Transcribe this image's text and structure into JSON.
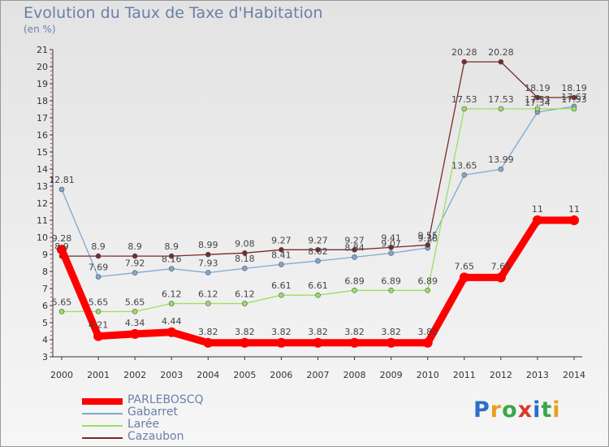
{
  "chart_data": {
    "type": "line",
    "title": "Evolution du Taux de Taxe d'Habitation",
    "subtitle": "(en %)",
    "x": [
      "2000",
      "2001",
      "2002",
      "2003",
      "2004",
      "2005",
      "2006",
      "2007",
      "2008",
      "2009",
      "2010",
      "2011",
      "2012",
      "2013",
      "2014"
    ],
    "ylim": [
      3,
      21
    ],
    "yticks": [
      3,
      4,
      5,
      6,
      7,
      8,
      9,
      10,
      11,
      12,
      13,
      14,
      15,
      16,
      17,
      18,
      19,
      20,
      21
    ],
    "grid": false,
    "legend_position": "bottom-left",
    "series": [
      {
        "name": "PARLEBOSCQ",
        "color": "#ff0000",
        "values": [
          9.28,
          4.21,
          4.34,
          4.44,
          3.82,
          3.82,
          3.82,
          3.82,
          3.82,
          3.82,
          3.82,
          7.65,
          7.65,
          11,
          11
        ],
        "labels": [
          "9.28",
          "4.21",
          "4.34",
          "4.44",
          "3.82",
          "3.82",
          "3.82",
          "3.82",
          "3.82",
          "3.82",
          "3.82",
          "7.65",
          "7.65",
          "11",
          "11"
        ]
      },
      {
        "name": "Gabarret",
        "color": "#7fa8d0",
        "values": [
          12.81,
          7.69,
          7.92,
          8.16,
          7.93,
          8.18,
          8.41,
          8.62,
          8.84,
          9.07,
          9.38,
          13.65,
          13.99,
          17.34,
          17.67
        ],
        "labels": [
          "12.81",
          "7.69",
          "7.92",
          "8.16",
          "7.93",
          "8.18",
          "8.41",
          "8.62",
          "8.84",
          "9.07",
          "9.38",
          "13.65",
          "13.99",
          "17.34",
          "17.67"
        ]
      },
      {
        "name": "Larée",
        "color": "#99e060",
        "values": [
          5.65,
          5.65,
          5.65,
          6.12,
          6.12,
          6.12,
          6.61,
          6.61,
          6.89,
          6.89,
          6.89,
          17.53,
          17.53,
          17.53,
          17.53
        ],
        "labels": [
          "5.65",
          "5.65",
          "5.65",
          "6.12",
          "6.12",
          "6.12",
          "6.61",
          "6.61",
          "6.89",
          "6.89",
          "6.89",
          "17.53",
          "17.53",
          "17.53",
          "17.53"
        ]
      },
      {
        "name": "Cazaubon",
        "color": "#7a2a2a",
        "values": [
          8.9,
          8.9,
          8.9,
          8.9,
          8.99,
          9.08,
          9.27,
          9.27,
          9.27,
          9.41,
          9.55,
          20.28,
          20.28,
          18.19,
          18.19
        ],
        "labels": [
          "8.9",
          "8.9",
          "8.9",
          "8.9",
          "8.99",
          "9.08",
          "9.27",
          "9.27",
          "9.27",
          "9.41",
          "9.55",
          "20.28",
          "20.28",
          "18.19",
          "18.19"
        ]
      }
    ]
  },
  "logo": {
    "text": "Proxiti",
    "colors": [
      "#2a6fc9",
      "#e8a020",
      "#3aa84a",
      "#d93a2a",
      "#2a6fc9",
      "#3aa84a",
      "#e8a020"
    ]
  }
}
